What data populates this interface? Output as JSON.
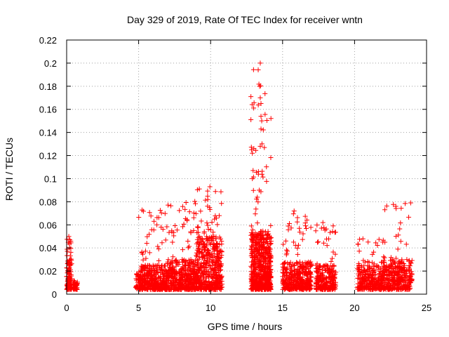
{
  "chart_data": {
    "type": "scatter",
    "title": "Day 329 of 2019, Rate Of TEC Index for receiver wntn",
    "xlabel": "GPS time / hours",
    "ylabel": "ROTI / TECUs",
    "xlim": [
      0,
      25
    ],
    "ylim": [
      0,
      0.22
    ],
    "xticks": [
      0,
      5,
      10,
      15,
      20,
      25
    ],
    "yticks": [
      0,
      0.02,
      0.04,
      0.06,
      0.08,
      0.1,
      0.12,
      0.14,
      0.16,
      0.18,
      0.2,
      0.22
    ],
    "grid": true,
    "marker": "+",
    "color": "#ff0000",
    "series": [
      {
        "name": "ROTI",
        "segments": [
          {
            "x_start": 0.0,
            "x_end": 0.35,
            "count": 130,
            "typical_max": 0.03,
            "peak": 0.05
          },
          {
            "x_start": 0.45,
            "x_end": 0.75,
            "count": 40,
            "typical_max": 0.01,
            "peak": 0.012
          },
          {
            "x_start": 4.8,
            "x_end": 5.0,
            "count": 20,
            "typical_max": 0.02,
            "peak": 0.028
          },
          {
            "x_start": 5.0,
            "x_end": 7.0,
            "count": 420,
            "typical_max": 0.025,
            "peak": 0.075
          },
          {
            "x_start": 7.0,
            "x_end": 9.0,
            "count": 420,
            "typical_max": 0.03,
            "peak": 0.085
          },
          {
            "x_start": 9.0,
            "x_end": 10.8,
            "count": 500,
            "typical_max": 0.05,
            "peak": 0.093
          },
          {
            "x_start": 12.8,
            "x_end": 14.2,
            "count": 650,
            "typical_max": 0.055,
            "peak": 0.2
          },
          {
            "x_start": 15.0,
            "x_end": 17.0,
            "count": 400,
            "typical_max": 0.028,
            "peak": 0.072
          },
          {
            "x_start": 17.3,
            "x_end": 18.7,
            "count": 260,
            "typical_max": 0.025,
            "peak": 0.062
          },
          {
            "x_start": 20.2,
            "x_end": 22.0,
            "count": 300,
            "typical_max": 0.025,
            "peak": 0.048
          },
          {
            "x_start": 22.0,
            "x_end": 24.0,
            "count": 330,
            "typical_max": 0.03,
            "peak": 0.079
          }
        ],
        "notable_points": [
          {
            "x": 0.15,
            "y": 0.05
          },
          {
            "x": 9.95,
            "y": 0.093
          },
          {
            "x": 12.8,
            "y": 0.151
          },
          {
            "x": 12.8,
            "y": 0.171
          },
          {
            "x": 12.85,
            "y": 0.125
          },
          {
            "x": 12.9,
            "y": 0.122
          },
          {
            "x": 12.95,
            "y": 0.107
          },
          {
            "x": 12.9,
            "y": 0.1
          },
          {
            "x": 13.45,
            "y": 0.2
          },
          {
            "x": 13.4,
            "y": 0.18
          },
          {
            "x": 13.45,
            "y": 0.17
          },
          {
            "x": 13.5,
            "y": 0.165
          },
          {
            "x": 13.5,
            "y": 0.154
          },
          {
            "x": 13.55,
            "y": 0.15
          },
          {
            "x": 13.5,
            "y": 0.143
          },
          {
            "x": 13.45,
            "y": 0.128
          },
          {
            "x": 15.8,
            "y": 0.072
          },
          {
            "x": 17.8,
            "y": 0.062
          },
          {
            "x": 23.9,
            "y": 0.079
          }
        ]
      }
    ]
  }
}
